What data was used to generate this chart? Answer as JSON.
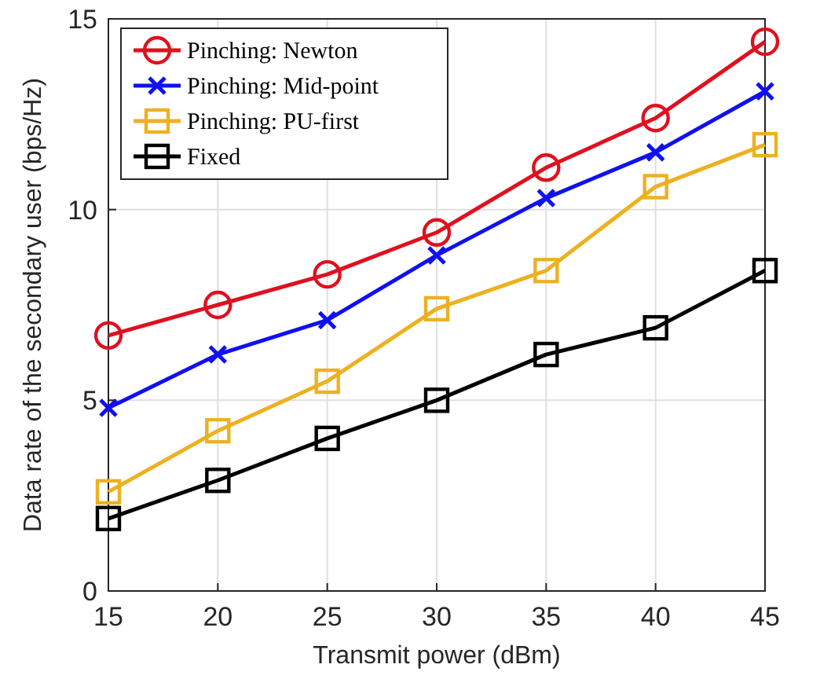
{
  "chart_data": {
    "type": "line",
    "xlabel": "Transmit power (dBm)",
    "ylabel": "Data rate of the secondary user (bps/Hz)",
    "x": [
      15,
      20,
      25,
      30,
      35,
      40,
      45
    ],
    "xlim": [
      15,
      45
    ],
    "xticks": [
      15,
      20,
      25,
      30,
      35,
      40,
      45
    ],
    "ylim": [
      0,
      15
    ],
    "yticks": [
      0,
      5,
      10,
      15
    ],
    "grid": true,
    "legend": "top left",
    "line_style": "solid",
    "series": [
      {
        "name": "Pinching: Newton",
        "color": "#e0101f",
        "marker": "circle",
        "values": [
          6.7,
          7.5,
          8.3,
          9.4,
          11.1,
          12.4,
          14.4
        ]
      },
      {
        "name": "Pinching: Mid-point",
        "color": "#1010f0",
        "marker": "cross",
        "values": [
          4.8,
          6.2,
          7.1,
          8.8,
          10.3,
          11.5,
          13.1
        ]
      },
      {
        "name": "Pinching: PU-first",
        "color": "#edb120",
        "marker": "square",
        "values": [
          2.6,
          4.2,
          5.5,
          7.4,
          8.4,
          10.6,
          11.7
        ]
      },
      {
        "name": "Fixed",
        "color": "#000000",
        "marker": "square",
        "values": [
          1.9,
          2.9,
          4.0,
          5.0,
          6.2,
          6.9,
          8.4
        ]
      }
    ]
  }
}
